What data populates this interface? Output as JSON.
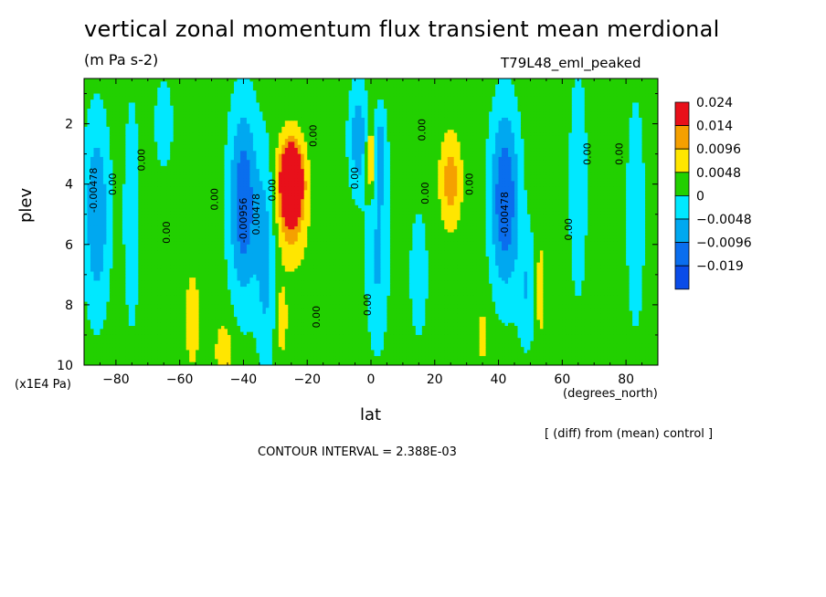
{
  "chart_data": {
    "type": "heatmap",
    "title": "vertical zonal momentum flux transient mean merdional",
    "subtitle": "(m Pa s-2)",
    "run_label": "T79L48_eml_peaked",
    "xlabel": "lat",
    "x_units": "(degrees_north)",
    "ylabel": "plev",
    "y_units": "(x1E4 Pa)",
    "note": "[ (diff) from (mean) control ]",
    "contour_interval": "CONTOUR INTERVAL = 2.388E-03",
    "xlim": [
      -90,
      90
    ],
    "ylim": [
      10,
      0.5
    ],
    "x_ticks": [
      -80,
      -60,
      -40,
      -20,
      0,
      20,
      40,
      60,
      80
    ],
    "y_ticks": [
      2,
      4,
      6,
      8,
      10
    ],
    "legend": {
      "placement": "right",
      "levels": [
        "0.024",
        "0.014",
        "0.0096",
        "0.0048",
        "0",
        "-0.0048",
        "-0.0096",
        "-0.019"
      ],
      "colors": [
        "#e8101a",
        "#f5a000",
        "#ffe600",
        "#22d000",
        "#00e8ff",
        "#00a8f0",
        "#0a6eee",
        "#0a4ce8"
      ]
    },
    "contour_labels": [
      {
        "text": "-0.00478",
        "lat": -86,
        "plev": 4.2
      },
      {
        "text": "0.00",
        "lat": -80,
        "plev": 4.0
      },
      {
        "text": "0.00",
        "lat": -71,
        "plev": 3.2
      },
      {
        "text": "0.00",
        "lat": -63,
        "plev": 5.6
      },
      {
        "text": "0.00",
        "lat": -48,
        "plev": 4.5
      },
      {
        "text": "-0.00956",
        "lat": -39,
        "plev": 5.2
      },
      {
        "text": "0.00478",
        "lat": -35,
        "plev": 5.0
      },
      {
        "text": "0.00",
        "lat": -30,
        "plev": 4.2
      },
      {
        "text": "0.00",
        "lat": -17,
        "plev": 2.4
      },
      {
        "text": "0.00",
        "lat": -16,
        "plev": 8.4
      },
      {
        "text": "0.00",
        "lat": -4,
        "plev": 3.8
      },
      {
        "text": "0.00",
        "lat": 0,
        "plev": 8.0
      },
      {
        "text": "0.00",
        "lat": 17,
        "plev": 2.2
      },
      {
        "text": "0.00",
        "lat": 18,
        "plev": 4.3
      },
      {
        "text": "0.00",
        "lat": 32,
        "plev": 4.0
      },
      {
        "text": "-0.00478",
        "lat": 43,
        "plev": 5.0
      },
      {
        "text": "0.00",
        "lat": 63,
        "plev": 5.5
      },
      {
        "text": "0.00",
        "lat": 69,
        "plev": 3.0
      },
      {
        "text": "0.00",
        "lat": 79,
        "plev": 3.0
      }
    ]
  }
}
